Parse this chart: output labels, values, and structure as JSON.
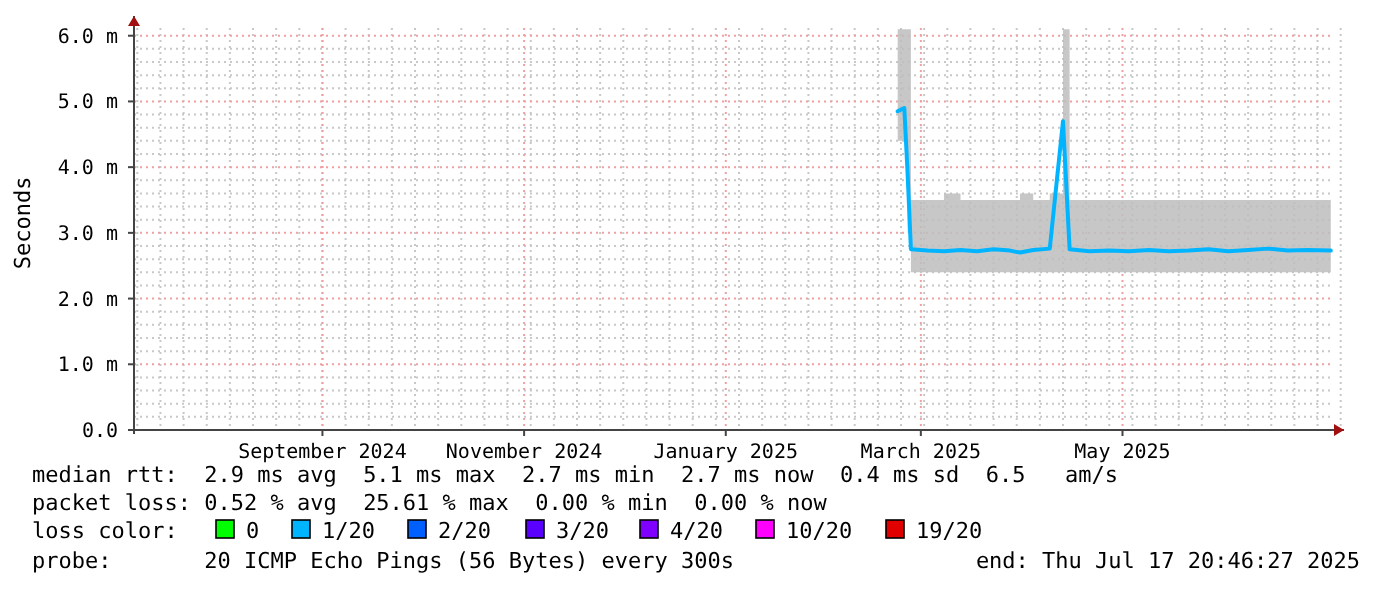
{
  "chart_data": {
    "type": "line",
    "ylabel": "Seconds",
    "xlim": [
      "2024-07-20",
      "2025-07-21"
    ],
    "xticks": [
      {
        "value": "2024-09-15",
        "label": "September 2024"
      },
      {
        "value": "2024-11-15",
        "label": "November 2024"
      },
      {
        "value": "2025-01-15",
        "label": "January 2025"
      },
      {
        "value": "2025-03-15",
        "label": "March 2025"
      },
      {
        "value": "2025-05-15",
        "label": "May 2025"
      }
    ],
    "ylim": [
      0,
      6.3
    ],
    "yticks": [
      {
        "value": 0,
        "label": "0.0"
      },
      {
        "value": 1,
        "label": "1.0 m"
      },
      {
        "value": 2,
        "label": "2.0 m"
      },
      {
        "value": 3,
        "label": "3.0 m"
      },
      {
        "value": 4,
        "label": "4.0 m"
      },
      {
        "value": 5,
        "label": "5.0 m"
      },
      {
        "value": 6,
        "label": "6.0 m"
      }
    ],
    "grid": true,
    "marker": "none",
    "line_style": "solid",
    "x": [
      "2025-03-08",
      "2025-03-10",
      "2025-03-11",
      "2025-03-12",
      "2025-03-17",
      "2025-03-22",
      "2025-03-27",
      "2025-04-01",
      "2025-04-06",
      "2025-04-11",
      "2025-04-14",
      "2025-04-18",
      "2025-04-23",
      "2025-04-27",
      "2025-04-29",
      "2025-05-05",
      "2025-05-11",
      "2025-05-17",
      "2025-05-23",
      "2025-05-29",
      "2025-06-04",
      "2025-06-10",
      "2025-06-16",
      "2025-06-22",
      "2025-06-28",
      "2025-07-04",
      "2025-07-10",
      "2025-07-17"
    ],
    "series": [
      {
        "color": "#00b4ff",
        "values": [
          4.85,
          4.9,
          3.9,
          2.75,
          2.73,
          2.72,
          2.74,
          2.72,
          2.75,
          2.73,
          2.7,
          2.74,
          2.76,
          4.7,
          2.75,
          2.72,
          2.73,
          2.72,
          2.74,
          2.72,
          2.73,
          2.75,
          2.72,
          2.74,
          2.76,
          2.73,
          2.74,
          2.73
        ],
        "lower": [
          4.4,
          4.4,
          3.0,
          2.4,
          2.4,
          2.4,
          2.4,
          2.4,
          2.4,
          2.4,
          2.4,
          2.4,
          2.4,
          2.4,
          2.4,
          2.4,
          2.4,
          2.4,
          2.4,
          2.4,
          2.4,
          2.4,
          2.4,
          2.4,
          2.4,
          2.4,
          2.4,
          2.4
        ],
        "upper": [
          6.1,
          6.1,
          6.1,
          3.5,
          3.5,
          3.6,
          3.5,
          3.5,
          3.5,
          3.5,
          3.6,
          3.5,
          3.6,
          6.1,
          3.5,
          3.5,
          3.5,
          3.5,
          3.5,
          3.5,
          3.5,
          3.5,
          3.5,
          3.5,
          3.5,
          3.5,
          3.5,
          3.5
        ]
      }
    ],
    "annotations": [
      "median rtt:  2.9 ms avg  5.1 ms max  2.7 ms min  2.7 ms now  0.4 ms sd  6.5   am/s",
      "packet loss: 0.52 % avg  25.61 % max  0.00 % min  0.00 % now",
      "loss color:",
      "0",
      "1/20",
      "2/20",
      "3/20",
      "4/20",
      "10/20",
      "19/20",
      "probe:       20 ICMP Echo Pings (56 Bytes) every 300s",
      "end: Thu Jul 17 20:46:27 2025"
    ]
  }
}
